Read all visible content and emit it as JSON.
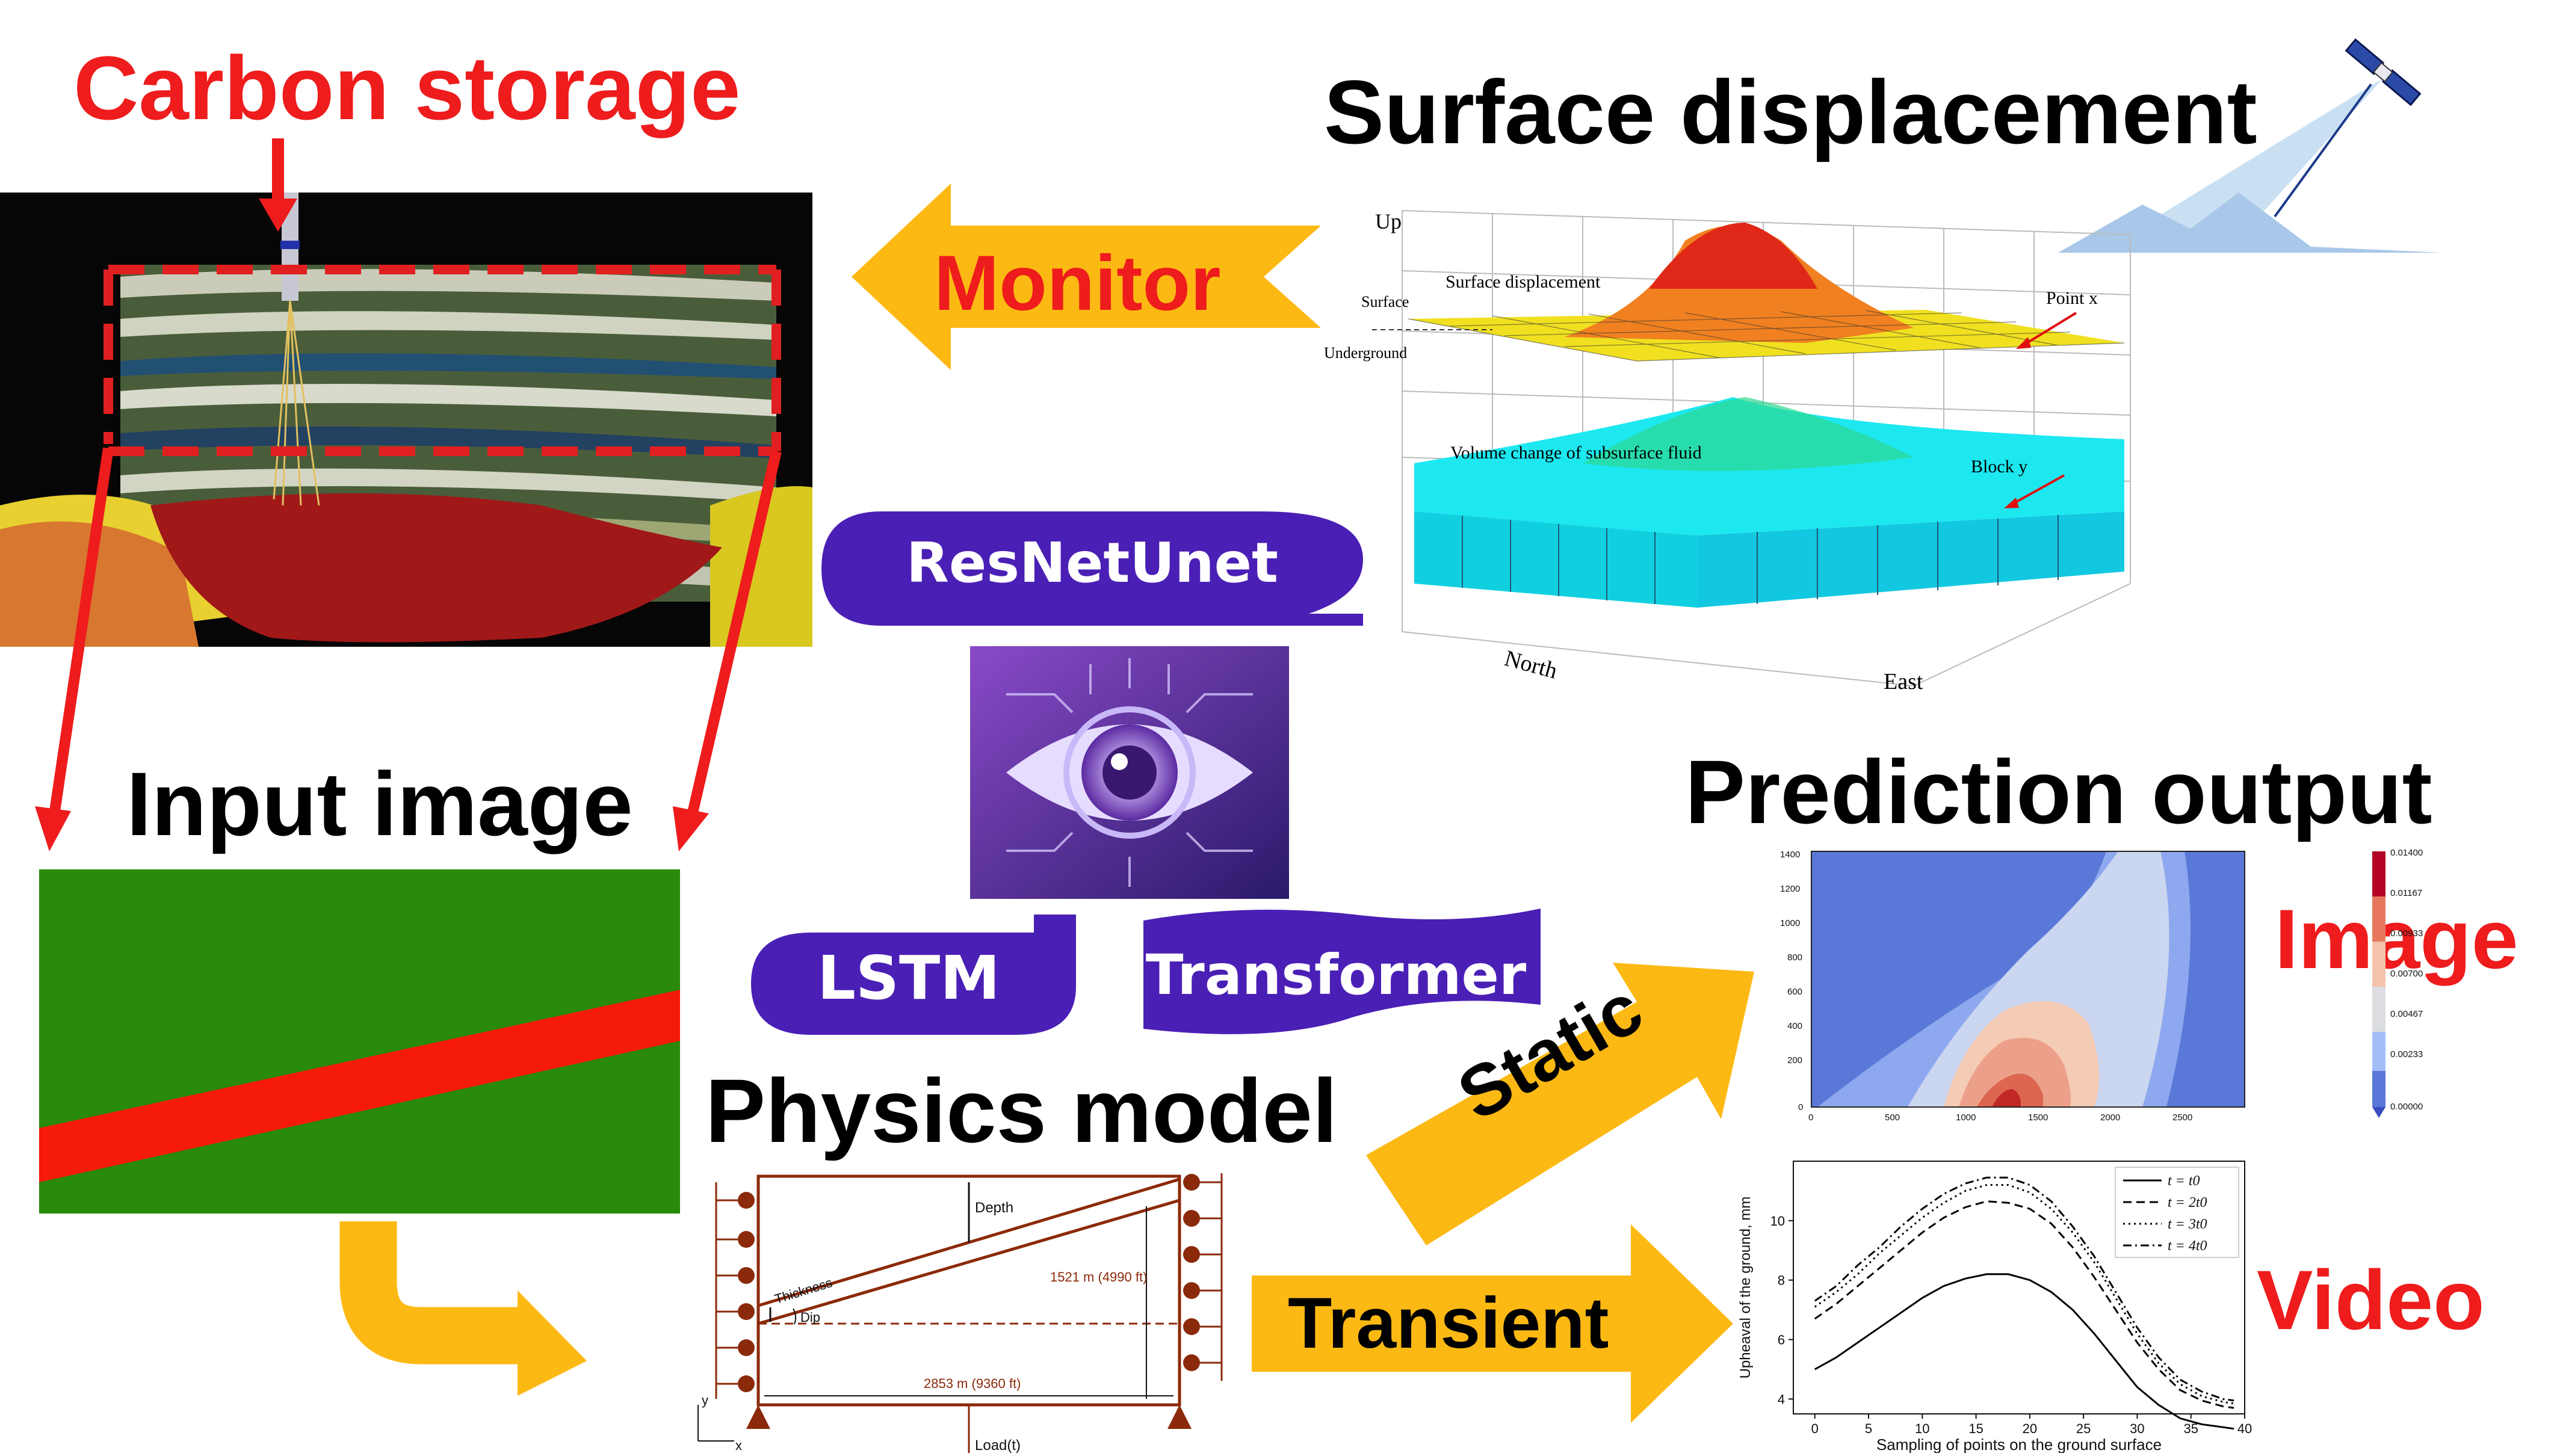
{
  "headings": {
    "carbon_storage": "Carbon storage",
    "surface_displacement": "Surface displacement",
    "input_image": "Input image",
    "physics_model": "Physics model",
    "prediction_output": "Prediction output"
  },
  "arrows": {
    "monitor": "Monitor",
    "static": "Static",
    "transient": "Transient"
  },
  "outputs": {
    "image": "Image",
    "video": "Video"
  },
  "models": {
    "resnetunet": "ResNetUnet",
    "lstm": "LSTM",
    "transformer": "Transformer"
  },
  "displacement_3d": {
    "up": "Up",
    "surface": "Surface",
    "underground": "Underground",
    "surface_label": "Surface displacement",
    "volume_label": "Volume change of subsurface fluid",
    "point_label": "Point x",
    "block_label": "Block y",
    "north": "North",
    "east": "East"
  },
  "physics": {
    "depth": "Depth",
    "thickness": "Thickness",
    "dip": "Dip",
    "height": "1521 m (4990 ft)",
    "width": "2853 m (9360 ft)",
    "load": "Load(t)",
    "axis_y": "y",
    "axis_x": "x"
  },
  "heatmap": {
    "yticks": [
      "1400",
      "1200",
      "1000",
      "800",
      "600",
      "400",
      "200",
      "0"
    ],
    "xticks": [
      "0",
      "500",
      "1000",
      "1500",
      "2000",
      "2500"
    ],
    "colorbar_ticks": [
      "0.01400",
      "0.01167",
      "0.00933",
      "0.00700",
      "0.00467",
      "0.00233",
      "0.00000"
    ]
  },
  "chart_data": {
    "type": "line",
    "title": "",
    "xlabel": "Sampling of points on the ground surface",
    "ylabel": "Upheaval of the ground, mm",
    "xlim": [
      -2,
      40
    ],
    "ylim": [
      3.5,
      12
    ],
    "xticks": [
      0,
      5,
      10,
      15,
      20,
      25,
      30,
      35,
      40
    ],
    "yticks": [
      4,
      6,
      8,
      10
    ],
    "legend_position": "top-right",
    "x": [
      0,
      2,
      4,
      6,
      8,
      10,
      12,
      14,
      16,
      18,
      20,
      22,
      24,
      26,
      28,
      30,
      32,
      34,
      36,
      38,
      39
    ],
    "series": [
      {
        "name": "t = t0",
        "style": "solid",
        "values": [
          5.0,
          5.4,
          5.9,
          6.4,
          6.9,
          7.4,
          7.8,
          8.05,
          8.2,
          8.2,
          8.0,
          7.6,
          7.0,
          6.2,
          5.3,
          4.4,
          3.8,
          3.35,
          3.15,
          3.05,
          3.0
        ]
      },
      {
        "name": "t = 2t0",
        "style": "dashed",
        "values": [
          6.7,
          7.2,
          7.8,
          8.4,
          9.0,
          9.6,
          10.1,
          10.45,
          10.65,
          10.6,
          10.4,
          9.9,
          9.1,
          8.1,
          7.0,
          5.9,
          5.0,
          4.3,
          3.95,
          3.75,
          3.7
        ]
      },
      {
        "name": "t = 3t0",
        "style": "dotted",
        "values": [
          7.1,
          7.6,
          8.2,
          8.9,
          9.5,
          10.1,
          10.6,
          11.0,
          11.2,
          11.2,
          10.95,
          10.4,
          9.6,
          8.6,
          7.4,
          6.2,
          5.2,
          4.5,
          4.1,
          3.9,
          3.85
        ]
      },
      {
        "name": "t = 4t0",
        "style": "dashdot",
        "values": [
          7.3,
          7.8,
          8.5,
          9.1,
          9.8,
          10.4,
          10.9,
          11.25,
          11.45,
          11.45,
          11.2,
          10.65,
          9.8,
          8.8,
          7.6,
          6.4,
          5.4,
          4.65,
          4.25,
          4.0,
          3.95
        ]
      }
    ]
  }
}
